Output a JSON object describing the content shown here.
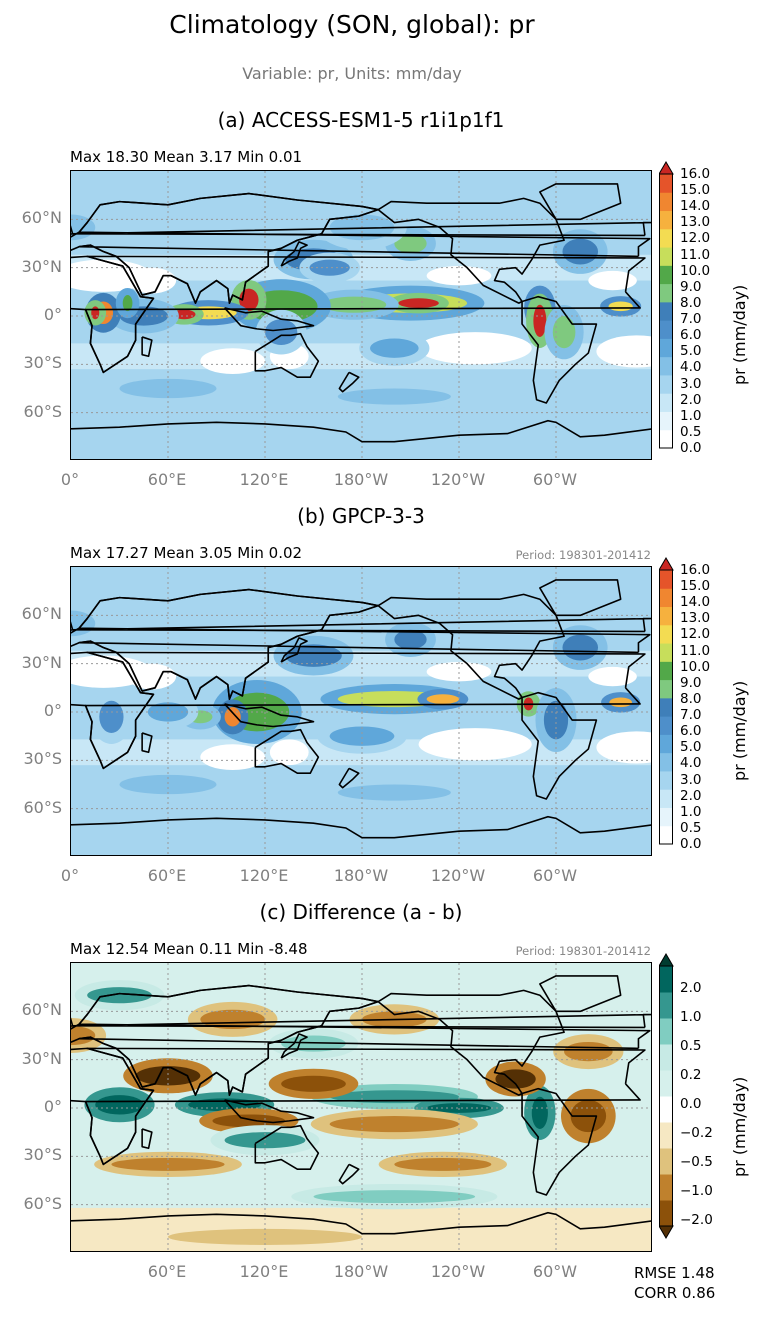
{
  "title": "Climatology (SON, global): pr",
  "subtitle": "Variable: pr, Units: mm/day",
  "colors": {
    "precip_scale": [
      "#ffffff",
      "#e6f4fb",
      "#c8e7f6",
      "#a6d5ef",
      "#83c0e6",
      "#5fa7da",
      "#4e8fca",
      "#3f7fb9",
      "#7fc97f",
      "#52a849",
      "#c7de5b",
      "#f3dc52",
      "#f6b13e",
      "#f08630",
      "#e5542a",
      "#c92623"
    ],
    "diff_scale": [
      "#543005",
      "#8c510a",
      "#bf812d",
      "#dfc27d",
      "#f6e8c3",
      "#ffffff",
      "#d6f0ec",
      "#c7eae5",
      "#80cdc1",
      "#35978f",
      "#01665e",
      "#003c30"
    ]
  },
  "chart_data": [
    {
      "type": "heatmap",
      "title": "(a) ACCESS-ESM1-5 r1i1p1f1",
      "stats": "Max 18.30 Mean 3.17 Min 0.01",
      "period": "",
      "lat_ticks": [
        "60°N",
        "30°N",
        "0°",
        "30°S",
        "60°S"
      ],
      "lon_ticks": [
        "0°",
        "60°E",
        "120°E",
        "180°W",
        "120°W",
        "60°W"
      ],
      "colorbar_label": "pr (mm/day)",
      "colorbar_ticks": [
        "0.0",
        "0.5",
        "1.0",
        "2.0",
        "3.0",
        "4.0",
        "5.0",
        "6.0",
        "7.0",
        "8.0",
        "9.0",
        "10.0",
        "11.0",
        "12.0",
        "13.0",
        "14.0",
        "15.0",
        "16.0"
      ],
      "colorbar_extend": "max",
      "scale": "precip",
      "features": [
        {
          "lon": 210,
          "lat": 8,
          "w": 70,
          "h": 6,
          "v": 9
        },
        {
          "lon": 215,
          "lat": 8,
          "w": 25,
          "h": 3,
          "v": 14
        },
        {
          "lon": 175,
          "lat": 7,
          "w": 40,
          "h": 5,
          "v": 7
        },
        {
          "lon": 130,
          "lat": 6,
          "w": 45,
          "h": 10,
          "v": 8
        },
        {
          "lon": 110,
          "lat": 10,
          "w": 12,
          "h": 7,
          "v": 14
        },
        {
          "lon": 85,
          "lat": 2,
          "w": 35,
          "h": 4,
          "v": 10
        },
        {
          "lon": 70,
          "lat": 1,
          "w": 14,
          "h": 3,
          "v": 15
        },
        {
          "lon": 45,
          "lat": 0,
          "w": 30,
          "h": 6,
          "v": 6
        },
        {
          "lon": 20,
          "lat": 2,
          "w": 12,
          "h": 7,
          "v": 12
        },
        {
          "lon": 15,
          "lat": 2,
          "w": 5,
          "h": 4,
          "v": 15
        },
        {
          "lon": 35,
          "lat": 8,
          "w": 6,
          "h": 5,
          "v": 8
        },
        {
          "lon": 290,
          "lat": 5,
          "w": 10,
          "h": 8,
          "v": 10
        },
        {
          "lon": 290,
          "lat": -3,
          "w": 8,
          "h": 10,
          "v": 15
        },
        {
          "lon": 305,
          "lat": -10,
          "w": 14,
          "h": 10,
          "v": 7
        },
        {
          "lon": 340,
          "lat": 6,
          "w": 15,
          "h": 3,
          "v": 10
        },
        {
          "lon": 150,
          "lat": 35,
          "w": 35,
          "h": 7,
          "v": 6
        },
        {
          "lon": 160,
          "lat": 30,
          "w": 25,
          "h": 5,
          "v": 5
        },
        {
          "lon": 210,
          "lat": 45,
          "w": 20,
          "h": 6,
          "v": 7
        },
        {
          "lon": 315,
          "lat": 40,
          "w": 22,
          "h": 8,
          "v": 6
        },
        {
          "lon": 200,
          "lat": -20,
          "w": 30,
          "h": 6,
          "v": 4
        },
        {
          "lon": 130,
          "lat": -10,
          "w": 20,
          "h": 8,
          "v": 5
        },
        {
          "lon": 60,
          "lat": -45,
          "w": 60,
          "h": 6,
          "v": 3
        },
        {
          "lon": 200,
          "lat": -50,
          "w": 70,
          "h": 5,
          "v": 3
        },
        {
          "lon": 180,
          "lat": 55,
          "w": 40,
          "h": 8,
          "v": 3
        },
        {
          "lon": 0,
          "lat": 55,
          "w": 30,
          "h": 8,
          "v": 3
        }
      ]
    },
    {
      "type": "heatmap",
      "title": "(b) GPCP-3-3",
      "stats": "Max 17.27 Mean 3.05 Min 0.02",
      "period": "Period: 198301-201412",
      "lat_ticks": [
        "60°N",
        "30°N",
        "0°",
        "30°S",
        "60°S"
      ],
      "lon_ticks": [
        "0°",
        "60°E",
        "120°E",
        "180°W",
        "120°W",
        "60°W"
      ],
      "colorbar_label": "pr (mm/day)",
      "colorbar_ticks": [
        "0.0",
        "0.5",
        "1.0",
        "2.0",
        "3.0",
        "4.0",
        "5.0",
        "6.0",
        "7.0",
        "8.0",
        "9.0",
        "10.0",
        "11.0",
        "12.0",
        "13.0",
        "14.0",
        "15.0",
        "16.0"
      ],
      "colorbar_extend": "max",
      "scale": "precip",
      "features": [
        {
          "lon": 200,
          "lat": 8,
          "w": 70,
          "h": 5,
          "v": 9
        },
        {
          "lon": 230,
          "lat": 8,
          "w": 20,
          "h": 3,
          "v": 11
        },
        {
          "lon": 115,
          "lat": 0,
          "w": 40,
          "h": 12,
          "v": 8
        },
        {
          "lon": 100,
          "lat": -3,
          "w": 10,
          "h": 6,
          "v": 12
        },
        {
          "lon": 80,
          "lat": -3,
          "w": 15,
          "h": 4,
          "v": 7
        },
        {
          "lon": 60,
          "lat": 0,
          "w": 25,
          "h": 6,
          "v": 4
        },
        {
          "lon": 25,
          "lat": -3,
          "w": 15,
          "h": 10,
          "v": 5
        },
        {
          "lon": 283,
          "lat": 5,
          "w": 6,
          "h": 4,
          "v": 14
        },
        {
          "lon": 300,
          "lat": -5,
          "w": 15,
          "h": 12,
          "v": 6
        },
        {
          "lon": 340,
          "lat": 6,
          "w": 14,
          "h": 3,
          "v": 11
        },
        {
          "lon": 150,
          "lat": 35,
          "w": 35,
          "h": 7,
          "v": 6
        },
        {
          "lon": 210,
          "lat": 45,
          "w": 20,
          "h": 6,
          "v": 6
        },
        {
          "lon": 315,
          "lat": 40,
          "w": 22,
          "h": 8,
          "v": 6
        },
        {
          "lon": 180,
          "lat": -15,
          "w": 40,
          "h": 6,
          "v": 4
        },
        {
          "lon": 60,
          "lat": -45,
          "w": 60,
          "h": 6,
          "v": 3
        },
        {
          "lon": 200,
          "lat": -50,
          "w": 70,
          "h": 5,
          "v": 3
        },
        {
          "lon": 0,
          "lat": 55,
          "w": 30,
          "h": 8,
          "v": 3
        }
      ]
    },
    {
      "type": "heatmap",
      "title": "(c) Difference (a - b)",
      "stats": "Max 12.54 Mean 0.11 Min -8.48",
      "period": "Period: 198301-201412",
      "lat_ticks": [
        "60°N",
        "30°N",
        "0°",
        "30°S",
        "60°S"
      ],
      "lon_ticks": [
        "60°E",
        "120°E",
        "180°W",
        "120°W",
        "60°W"
      ],
      "colorbar_label": "pr (mm/day)",
      "colorbar_ticks": [
        "−2.0",
        "−1.0",
        "−0.5",
        "−0.2",
        "0.0",
        "0.2",
        "0.5",
        "1.0",
        "2.0"
      ],
      "colorbar_extend": "both",
      "scale": "diff",
      "rmse": "RMSE 1.48",
      "corr": "CORR 0.86",
      "features": [
        {
          "lon": 30,
          "lat": 2,
          "w": 30,
          "h": 6,
          "v": 2.5
        },
        {
          "lon": 95,
          "lat": 2,
          "w": 45,
          "h": 4,
          "v": 2.5
        },
        {
          "lon": 200,
          "lat": 7,
          "w": 80,
          "h": 4,
          "v": 1.5
        },
        {
          "lon": 240,
          "lat": 0,
          "w": 40,
          "h": 3,
          "v": 2.5
        },
        {
          "lon": 290,
          "lat": -3,
          "w": 10,
          "h": 10,
          "v": 2.5
        },
        {
          "lon": 110,
          "lat": -8,
          "w": 45,
          "h": 4,
          "v": -1.5
        },
        {
          "lon": 200,
          "lat": -10,
          "w": 80,
          "h": 5,
          "v": -1.0
        },
        {
          "lon": 60,
          "lat": 20,
          "w": 40,
          "h": 6,
          "v": -2.5
        },
        {
          "lon": 150,
          "lat": 15,
          "w": 40,
          "h": 5,
          "v": -1.5
        },
        {
          "lon": 275,
          "lat": 18,
          "w": 25,
          "h": 6,
          "v": -2.5
        },
        {
          "lon": 320,
          "lat": -5,
          "w": 22,
          "h": 10,
          "v": -2.0
        },
        {
          "lon": 120,
          "lat": -20,
          "w": 50,
          "h": 5,
          "v": 1.0
        },
        {
          "lon": 60,
          "lat": -35,
          "w": 70,
          "h": 4,
          "v": -1.0
        },
        {
          "lon": 230,
          "lat": -35,
          "w": 60,
          "h": 4,
          "v": -0.8
        },
        {
          "lon": 150,
          "lat": 40,
          "w": 40,
          "h": 5,
          "v": 0.8
        },
        {
          "lon": 100,
          "lat": 55,
          "w": 40,
          "h": 6,
          "v": -1.0
        },
        {
          "lon": 200,
          "lat": 55,
          "w": 40,
          "h": 5,
          "v": -1.0
        },
        {
          "lon": 320,
          "lat": 35,
          "w": 30,
          "h": 6,
          "v": -1.0
        },
        {
          "lon": 0,
          "lat": 45,
          "w": 30,
          "h": 6,
          "v": -0.8
        },
        {
          "lon": 30,
          "lat": 70,
          "w": 40,
          "h": 5,
          "v": 1.0
        },
        {
          "lon": 200,
          "lat": -55,
          "w": 100,
          "h": 4,
          "v": 0.8
        },
        {
          "lon": 120,
          "lat": -80,
          "w": 120,
          "h": 5,
          "v": -0.3
        }
      ]
    }
  ]
}
